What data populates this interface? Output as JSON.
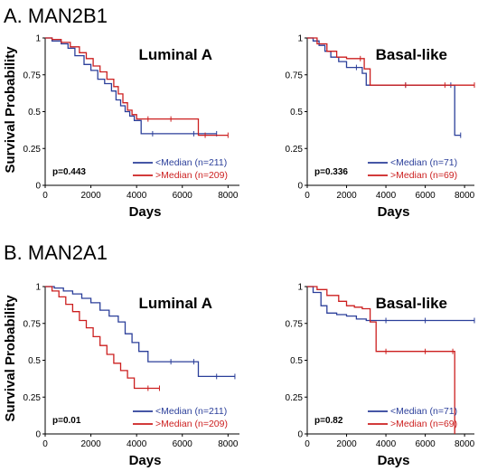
{
  "sections": [
    {
      "title": "A. MAN2B1"
    },
    {
      "title": "B. MAN2A1"
    }
  ],
  "colors": {
    "below_median": "#2b3f9a",
    "above_median": "#cc1f1f",
    "axis": "#000000"
  },
  "chart_data": [
    {
      "type": "line",
      "section": "A. MAN2B1",
      "title": "Luminal A",
      "xlabel": "Days",
      "ylabel": "Survival Probability",
      "xlim": [
        0,
        8500
      ],
      "ylim": [
        0,
        1
      ],
      "x_ticks": [
        "0",
        "2000",
        "4000",
        "6000",
        "8000"
      ],
      "y_ticks": [
        "0",
        "0.25",
        "0.5",
        "0.75",
        "1"
      ],
      "grid": false,
      "legend_position": "bottom-right",
      "annotation": "p=0.443",
      "series": [
        {
          "name": "<Median (n=211)",
          "color": "#2b3f9a",
          "x": [
            0,
            300,
            700,
            1000,
            1300,
            1700,
            2000,
            2300,
            2600,
            2900,
            3100,
            3300,
            3500,
            3700,
            3900,
            4200,
            4700,
            6500,
            7500
          ],
          "y": [
            1,
            0.98,
            0.96,
            0.93,
            0.88,
            0.82,
            0.78,
            0.72,
            0.69,
            0.64,
            0.58,
            0.54,
            0.5,
            0.47,
            0.44,
            0.35,
            0.35,
            0.35,
            0.35
          ]
        },
        {
          "name": ">Median (n=209)",
          "color": "#cc1f1f",
          "x": [
            0,
            300,
            700,
            1100,
            1500,
            1800,
            2100,
            2400,
            2700,
            3000,
            3200,
            3400,
            3600,
            3800,
            4000,
            4500,
            5500,
            6700,
            7000,
            8000
          ],
          "y": [
            1,
            0.99,
            0.97,
            0.94,
            0.9,
            0.86,
            0.81,
            0.77,
            0.72,
            0.67,
            0.62,
            0.56,
            0.51,
            0.48,
            0.45,
            0.45,
            0.45,
            0.34,
            0.34,
            0.34
          ]
        }
      ]
    },
    {
      "type": "line",
      "section": "A. MAN2B1",
      "title": "Basal-like",
      "xlabel": "Days",
      "ylabel": "",
      "xlim": [
        0,
        8500
      ],
      "ylim": [
        0,
        1
      ],
      "x_ticks": [
        "0",
        "2000",
        "4000",
        "6000",
        "8000"
      ],
      "y_ticks": [
        "0",
        "0.25",
        "0.5",
        "0.75",
        "1"
      ],
      "grid": false,
      "legend_position": "bottom-right",
      "annotation": "p=0.336",
      "series": [
        {
          "name": "<Median (n=71)",
          "color": "#2b3f9a",
          "x": [
            0,
            300,
            600,
            900,
            1200,
            1600,
            2000,
            2500,
            2800,
            3000,
            5000,
            7300,
            7500,
            7800
          ],
          "y": [
            1,
            0.98,
            0.95,
            0.91,
            0.87,
            0.84,
            0.8,
            0.8,
            0.76,
            0.68,
            0.68,
            0.68,
            0.34,
            0.34
          ]
        },
        {
          "name": ">Median (n=69)",
          "color": "#cc1f1f",
          "x": [
            0,
            500,
            1000,
            1500,
            2000,
            2700,
            2900,
            3200,
            5000,
            7000,
            8500
          ],
          "y": [
            1,
            0.96,
            0.91,
            0.87,
            0.86,
            0.86,
            0.79,
            0.68,
            0.68,
            0.68,
            0.68
          ]
        }
      ]
    },
    {
      "type": "line",
      "section": "B. MAN2A1",
      "title": "Luminal A",
      "xlabel": "Days",
      "ylabel": "Survival Probability",
      "xlim": [
        0,
        8500
      ],
      "ylim": [
        0,
        1
      ],
      "x_ticks": [
        "0",
        "2000",
        "4000",
        "6000",
        "8000"
      ],
      "y_ticks": [
        "0",
        "0.25",
        "0.5",
        "0.75",
        "1"
      ],
      "grid": false,
      "legend_position": "bottom-right",
      "annotation": "p=0.01",
      "series": [
        {
          "name": "<Median (n=211)",
          "color": "#2b3f9a",
          "x": [
            0,
            400,
            800,
            1200,
            1600,
            2000,
            2400,
            2800,
            3200,
            3500,
            3800,
            4100,
            4500,
            5500,
            6500,
            6700,
            7500,
            8300
          ],
          "y": [
            1,
            0.99,
            0.97,
            0.95,
            0.92,
            0.89,
            0.84,
            0.8,
            0.76,
            0.68,
            0.62,
            0.56,
            0.49,
            0.49,
            0.49,
            0.39,
            0.39,
            0.39
          ]
        },
        {
          "name": ">Median (n=209)",
          "color": "#cc1f1f",
          "x": [
            0,
            300,
            600,
            900,
            1200,
            1500,
            1800,
            2100,
            2400,
            2700,
            3000,
            3300,
            3600,
            3900,
            4500,
            5000
          ],
          "y": [
            1,
            0.97,
            0.93,
            0.88,
            0.83,
            0.77,
            0.72,
            0.66,
            0.6,
            0.54,
            0.48,
            0.43,
            0.38,
            0.31,
            0.31,
            0.31
          ]
        }
      ]
    },
    {
      "type": "line",
      "section": "B. MAN2A1",
      "title": "Basal-like",
      "xlabel": "Days",
      "ylabel": "",
      "xlim": [
        0,
        8500
      ],
      "ylim": [
        0,
        1
      ],
      "x_ticks": [
        "0",
        "2000",
        "4000",
        "6000",
        "8000"
      ],
      "y_ticks": [
        "0",
        "0.25",
        "0.5",
        "0.75",
        "1"
      ],
      "grid": false,
      "legend_position": "bottom-right",
      "annotation": "p=0.82",
      "series": [
        {
          "name": "<Median (n=71)",
          "color": "#2b3f9a",
          "x": [
            0,
            300,
            700,
            1000,
            1500,
            2000,
            2500,
            3000,
            4000,
            6000,
            8500
          ],
          "y": [
            1,
            0.96,
            0.87,
            0.82,
            0.81,
            0.8,
            0.78,
            0.77,
            0.77,
            0.77,
            0.77
          ]
        },
        {
          "name": ">Median (n=69)",
          "color": "#cc1f1f",
          "x": [
            0,
            500,
            1000,
            1600,
            2000,
            2400,
            2800,
            3200,
            3500,
            4000,
            6000,
            7400,
            7500
          ],
          "y": [
            1,
            0.98,
            0.94,
            0.9,
            0.87,
            0.86,
            0.85,
            0.76,
            0.56,
            0.56,
            0.56,
            0.56,
            0
          ]
        }
      ]
    }
  ]
}
